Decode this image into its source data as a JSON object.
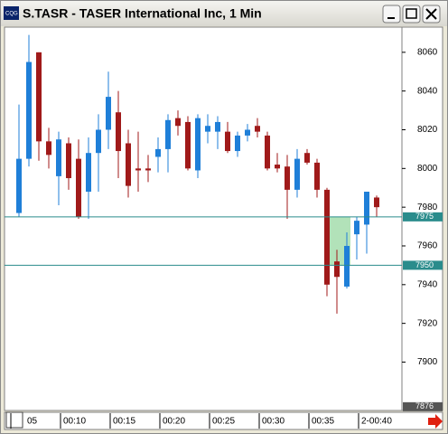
{
  "chart_data": {
    "type": "candlestick",
    "title": "S.TASR - TASER International Inc, 1 Min",
    "categories": [
      "05",
      null,
      null,
      null,
      null,
      "00:10",
      null,
      null,
      null,
      null,
      "00:15",
      null,
      null,
      null,
      null,
      "00:20",
      null,
      null,
      null,
      null,
      "00:25",
      null,
      null,
      null,
      null,
      "00:30",
      null,
      null,
      null,
      null,
      "00:35",
      null,
      null,
      null,
      null,
      "2-00:40",
      null,
      null
    ],
    "open": [
      null,
      7977,
      8005,
      8060,
      8014,
      7996,
      8013,
      8005,
      7988,
      8008,
      8020,
      8029,
      8013,
      8000,
      8000,
      8006,
      8010,
      8026,
      8024,
      7999,
      8019,
      8019,
      8019,
      8009,
      8017,
      8022,
      8017,
      8002,
      8001,
      7989,
      8008,
      8003,
      7989,
      7952,
      7939,
      7966,
      7971,
      7985
    ],
    "high": [
      null,
      8033,
      8069,
      8060,
      8021,
      8019,
      8016,
      8015,
      8016,
      8028,
      8050,
      8040,
      8020,
      8019,
      8007,
      8016,
      8028,
      8030,
      8027,
      8028,
      8028,
      8027,
      8024,
      8019,
      8023,
      8026,
      8019,
      8008,
      8007,
      8010,
      8010,
      8005,
      7990,
      7958,
      7967,
      7975,
      7988,
      7986
    ],
    "low": [
      null,
      7975,
      8001,
      8004,
      8000,
      7981,
      7989,
      7974,
      7974,
      7988,
      8010,
      7995,
      7985,
      7988,
      7993,
      7998,
      7998,
      8017,
      7999,
      7995,
      8013,
      8010,
      8008,
      8006,
      8014,
      8016,
      7999,
      7998,
      7974,
      7985,
      8002,
      7985,
      7934,
      7925,
      7938,
      7953,
      7956,
      7975
    ],
    "close": [
      null,
      8005,
      8055,
      8014,
      8007,
      8015,
      7995,
      7975,
      8008,
      8020,
      8037,
      8009,
      7991,
      7999,
      7999,
      8010,
      8025,
      8022,
      8000,
      8026,
      8022,
      8024,
      8009,
      8017,
      8020,
      8019,
      8000,
      8000,
      7989,
      8005,
      8003,
      7989,
      7940,
      7944,
      7960,
      7973,
      7988,
      7980
    ],
    "up_color": "#1f7fd8",
    "down_color": "#a01a1a",
    "ylim": [
      7875,
      8073
    ],
    "yticks": [
      7900,
      7920,
      7940,
      7960,
      7980,
      8000,
      8020,
      8040,
      8060
    ],
    "hlines": [
      7975,
      7950
    ],
    "hline_color": "#2a8c8c",
    "bottom_marker": 7876
  }
}
